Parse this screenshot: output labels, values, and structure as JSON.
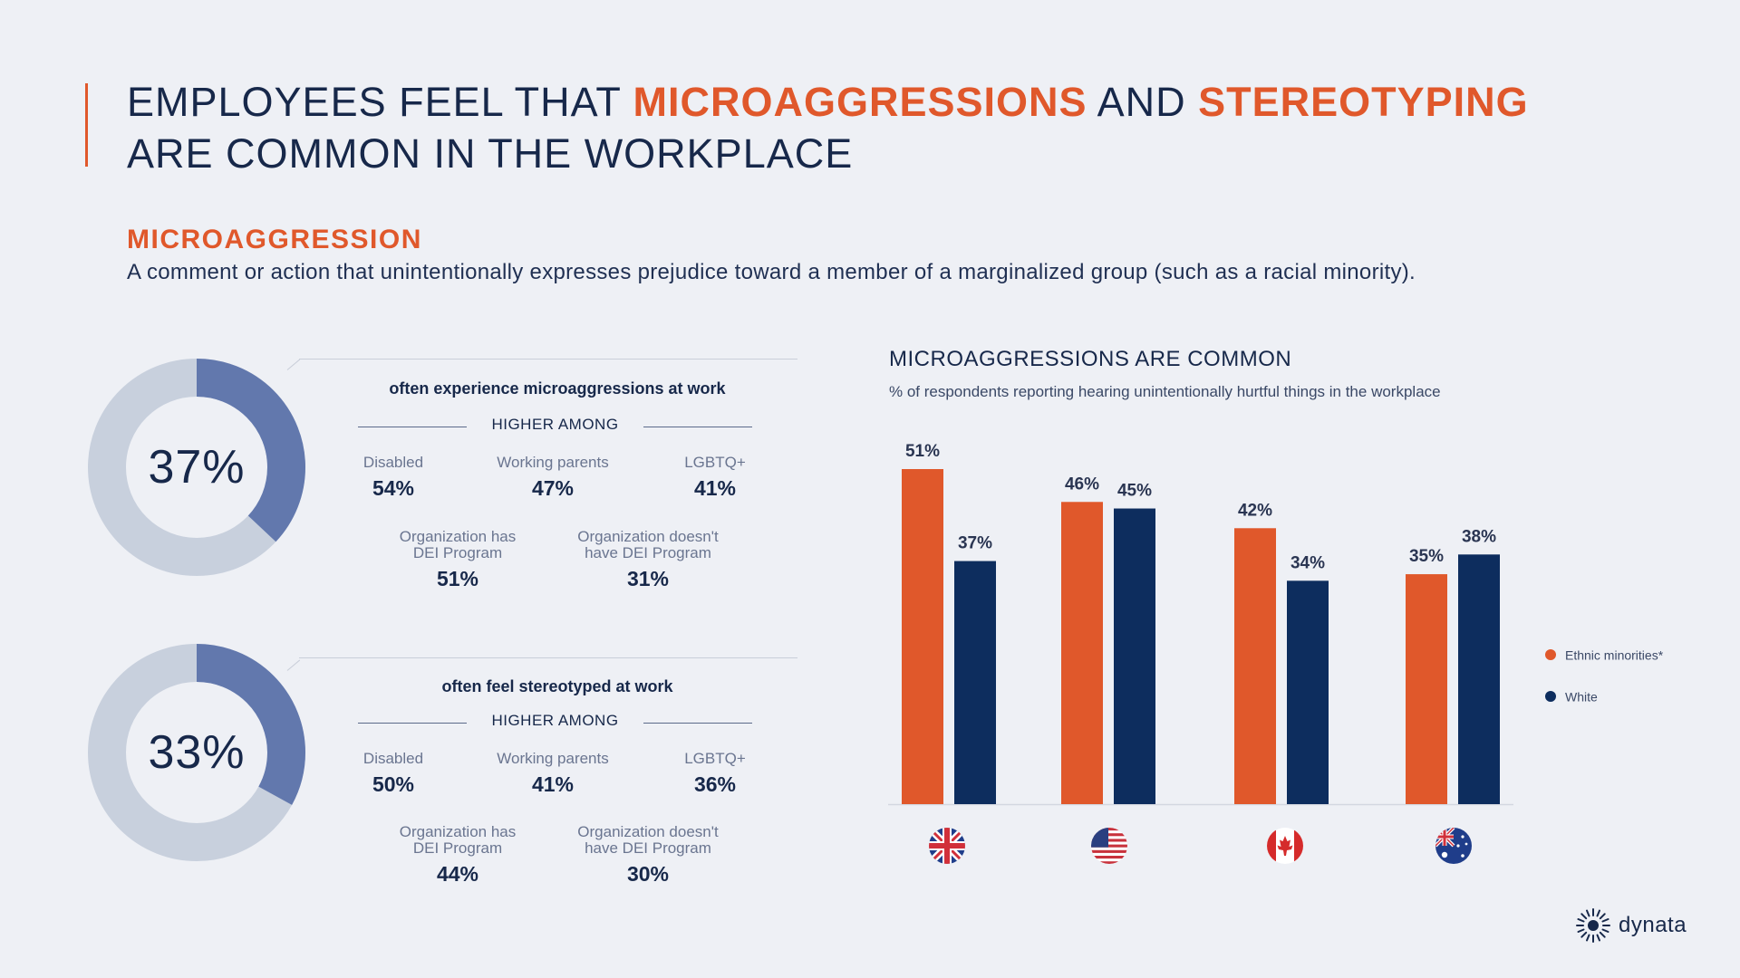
{
  "colors": {
    "orange": "#e0582b",
    "navy": "#0d2d5e",
    "donut_fill": "#6278ad",
    "donut_track": "#c8d0dd"
  },
  "title": {
    "line1_a": "EMPLOYEES FEEL THAT ",
    "line1_b": "MICROAGGRESSIONS",
    "line1_c": " AND ",
    "line1_d": "STEREOTYPING",
    "line2": "ARE COMMON IN THE WORKPLACE"
  },
  "definition": {
    "term": "MICROAGGRESSION",
    "text": "A comment or action that unintentionally expresses prejudice toward a member of a marginalized group (such as a racial minority)."
  },
  "panels": [
    {
      "pct_label": "37%",
      "pct_value": 37,
      "title": "often experience microaggressions at work",
      "higher": "HIGHER AMONG",
      "stats": [
        {
          "label": "Disabled",
          "value": "54%"
        },
        {
          "label": "Working parents",
          "value": "47%"
        },
        {
          "label": "LGBTQ+",
          "value": "41%"
        },
        {
          "label_1": "Organization has",
          "label_2": "DEI Program",
          "value": "51%"
        },
        {
          "label_1": "Organization doesn't",
          "label_2": "have DEI Program",
          "value": "31%"
        }
      ]
    },
    {
      "pct_label": "33%",
      "pct_value": 33,
      "title": "often feel stereotyped at work",
      "higher": "HIGHER AMONG",
      "stats": [
        {
          "label": "Disabled",
          "value": "50%"
        },
        {
          "label": "Working parents",
          "value": "41%"
        },
        {
          "label": "LGBTQ+",
          "value": "36%"
        },
        {
          "label_1": "Organization has",
          "label_2": "DEI Program",
          "value": "44%"
        },
        {
          "label_1": "Organization doesn't",
          "label_2": "have DEI Program",
          "value": "30%"
        }
      ]
    }
  ],
  "chart_data": {
    "type": "bar",
    "title": "MICROAGGRESSIONS ARE COMMON",
    "subtitle": "% of respondents reporting hearing unintentionally hurtful things in the workplace",
    "categories": [
      "uk-flag-icon",
      "us-flag-icon",
      "canada-flag-icon",
      "australia-flag-icon"
    ],
    "series": [
      {
        "name": "Ethnic minorities*",
        "color": "#e0582b",
        "values": [
          51,
          46,
          42,
          35
        ],
        "labels": [
          "51%",
          "46%",
          "42%",
          "35%"
        ]
      },
      {
        "name": "White",
        "color": "#0d2d5e",
        "values": [
          37,
          45,
          34,
          38
        ],
        "labels": [
          "37%",
          "45%",
          "34%",
          "38%"
        ]
      }
    ],
    "ylim": [
      0,
      55
    ],
    "grid": false,
    "legend": "right"
  },
  "brand": {
    "name": "dynata"
  }
}
